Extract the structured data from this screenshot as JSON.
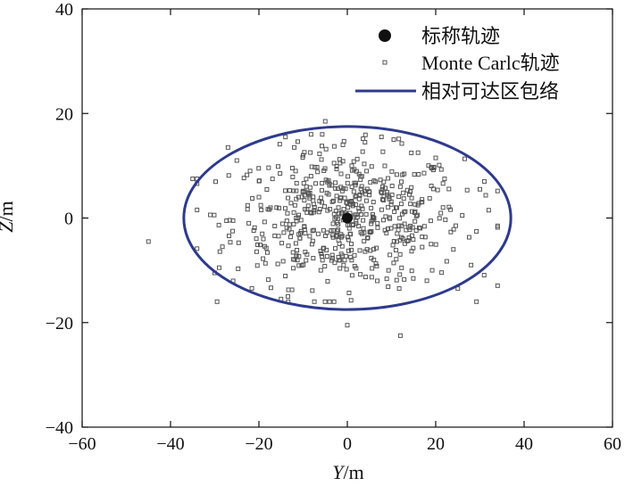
{
  "chart_data": {
    "type": "scatter",
    "xlabel": "Y/m",
    "ylabel": "Z/m",
    "xlim": [
      -60,
      60
    ],
    "ylim": [
      -40,
      40
    ],
    "xticks": [
      -60,
      -40,
      -20,
      0,
      20,
      40,
      60
    ],
    "yticks": [
      -40,
      -20,
      0,
      20,
      40
    ],
    "xtick_labels": [
      "−60",
      "−40",
      "−20",
      "0",
      "20",
      "40",
      "60"
    ],
    "ytick_labels": [
      "−40",
      "−20",
      "0",
      "20",
      "40"
    ],
    "grid": false,
    "legend_position": "top-right",
    "legend": [
      {
        "label": "标称轨迹",
        "marker": "filled-circle",
        "color": "#111111"
      },
      {
        "label": "Monte Carlc轨迹",
        "marker": "small-square",
        "color": "#555555"
      },
      {
        "label": "相对可达区包络",
        "marker": "line",
        "color": "#2e3a8c"
      }
    ],
    "series": [
      {
        "name": "标称轨迹",
        "kind": "point",
        "color": "#111111",
        "points": [
          [
            0,
            0
          ]
        ]
      },
      {
        "name": "相对可达区包络",
        "kind": "ellipse",
        "color": "#2e3a8c",
        "center": [
          0,
          0
        ],
        "semi_axis_y": 37,
        "semi_axis_z": 17.5
      },
      {
        "name": "Monte Carlc轨迹",
        "kind": "scatter",
        "color": "#555555",
        "approx_count": 600,
        "sample_points": [
          [
            -45,
            -4.5
          ],
          [
            -35,
            7.5
          ],
          [
            -31,
            0.6
          ],
          [
            -30,
            -10.5
          ],
          [
            -29,
            -9.5
          ],
          [
            -27,
            13.5
          ],
          [
            -25,
            11
          ],
          [
            -22,
            9
          ],
          [
            -20,
            4
          ],
          [
            -16,
            2
          ],
          [
            -14,
            15.5
          ],
          [
            -12,
            13.5
          ],
          [
            -10,
            12
          ],
          [
            -8,
            -5
          ],
          [
            -6,
            -10
          ],
          [
            -5,
            18.5
          ],
          [
            -3,
            10.5
          ],
          [
            -1,
            14
          ],
          [
            1,
            10
          ],
          [
            3,
            8
          ],
          [
            4,
            14.5
          ],
          [
            5,
            5
          ],
          [
            8,
            6
          ],
          [
            9,
            4.5
          ],
          [
            11,
            2
          ],
          [
            12,
            -22.5
          ],
          [
            16,
            12.5
          ],
          [
            20,
            11.5
          ],
          [
            22,
            7.5
          ],
          [
            24,
            -6
          ],
          [
            25,
            -13.5
          ],
          [
            26,
            0.5
          ],
          [
            28,
            -9
          ],
          [
            30,
            5.5
          ],
          [
            31,
            7
          ],
          [
            32,
            1.5
          ],
          [
            34,
            -1.5
          ],
          [
            0,
            -20.5
          ],
          [
            -15,
            -15.5
          ],
          [
            -3,
            -16
          ],
          [
            18,
            -12
          ],
          [
            12,
            6
          ],
          [
            -19,
            -4
          ],
          [
            6,
            -8
          ],
          [
            2,
            -1
          ],
          [
            -2,
            2
          ]
        ]
      }
    ]
  }
}
